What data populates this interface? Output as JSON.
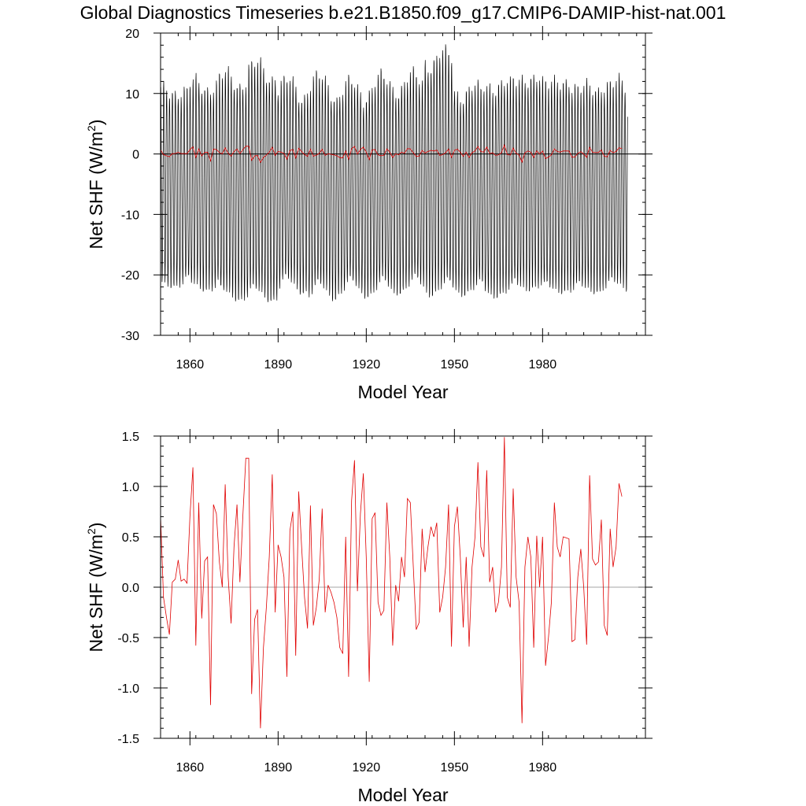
{
  "title": "Global Diagnostics Timeseries b.e21.B1850.f09_g17.CMIP6-DAMIP-hist-nat.001",
  "chart_data": [
    {
      "id": "monthly",
      "type": "line",
      "xlabel": "Model Year",
      "ylabel": "Net SHF (W/m",
      "ylabel_sup": "2",
      "ylabel_close": ")",
      "xlim": [
        1850,
        2015
      ],
      "ylim": [
        -30,
        20
      ],
      "xticks": [
        1860,
        1890,
        1920,
        1950,
        1980
      ],
      "xtick_labels": [
        "1860",
        "1890",
        "1920",
        "1950",
        "1980"
      ],
      "yticks": [
        -30,
        -20,
        -10,
        0,
        10,
        20
      ],
      "ytick_labels": [
        "-30",
        "-20",
        "-10",
        "0",
        "10",
        "20"
      ],
      "zero_line": 0,
      "series": [
        {
          "kind": "monthly",
          "color": "#000000",
          "x_start": 1850,
          "step": 0.0833,
          "annual_max_by_decade": [
            12.5,
            13.5,
            14.5,
            16.0,
            13.0,
            13.5,
            12.5,
            13.5,
            14.0,
            18.0,
            12.5,
            13.5,
            14.5,
            14.0,
            13.0,
            13.5,
            14.0
          ],
          "annual_min_by_decade": [
            -22.5,
            -23.0,
            -24.5,
            -24.5,
            -23.0,
            -24.0,
            -23.5,
            -23.5,
            -23.0,
            -23.5,
            -23.5,
            -24.0,
            -23.0,
            -23.5,
            -23.5,
            -23.0,
            -22.5
          ]
        },
        {
          "kind": "annual",
          "color": "#e00000",
          "ref": "annual_values"
        }
      ]
    },
    {
      "id": "annual",
      "type": "line",
      "xlabel": "Model Year",
      "ylabel": "Net SHF (W/m",
      "ylabel_sup": "2",
      "ylabel_close": ")",
      "xlim": [
        1850,
        2015
      ],
      "ylim": [
        -1.5,
        1.5
      ],
      "xticks": [
        1860,
        1890,
        1920,
        1950,
        1980
      ],
      "xtick_labels": [
        "1860",
        "1890",
        "1920",
        "1950",
        "1980"
      ],
      "yticks": [
        -1.5,
        -1.0,
        -0.5,
        0.0,
        0.5,
        1.0,
        1.5
      ],
      "ytick_labels": [
        "-1.5",
        "-1.0",
        "-0.5",
        "0.0",
        "0.5",
        "1.0",
        "1.5"
      ],
      "zero_line": 0,
      "series": [
        {
          "kind": "annual",
          "color": "#e00000",
          "ref": "annual_values"
        }
      ]
    }
  ],
  "annual_series": {
    "x_start": 1850,
    "step": 1,
    "values": [
      0.7,
      -0.1,
      -0.3,
      -0.47,
      0.05,
      0.08,
      0.27,
      0.06,
      0.08,
      0.04,
      0.7,
      1.19,
      -0.58,
      0.84,
      -0.31,
      0.26,
      0.3,
      -1.17,
      0.82,
      0.73,
      0.25,
      0.0,
      1.02,
      0.1,
      -0.36,
      0.4,
      0.82,
      0.05,
      0.7,
      1.28,
      1.28,
      -1.06,
      -0.32,
      -0.22,
      -1.4,
      -0.6,
      -0.2,
      0.3,
      1.12,
      -0.25,
      0.42,
      0.3,
      0.1,
      -0.89,
      0.56,
      0.75,
      -0.68,
      0.95,
      0.4,
      -0.1,
      -0.41,
      0.81,
      -0.38,
      -0.2,
      0.08,
      0.78,
      -0.25,
      0.02,
      -0.05,
      -0.15,
      -0.3,
      -0.6,
      -0.66,
      0.5,
      -0.89,
      0.86,
      1.26,
      -0.04,
      0.73,
      1.13,
      0.3,
      -0.94,
      0.68,
      0.74,
      -0.15,
      -0.28,
      -0.23,
      0.84,
      0.3,
      -0.58,
      0.02,
      -0.14,
      0.3,
      0.1,
      0.88,
      0.84,
      0.2,
      -0.42,
      -0.35,
      0.58,
      0.15,
      0.4,
      0.6,
      0.5,
      0.64,
      -0.25,
      -0.1,
      0.2,
      0.82,
      -0.59,
      0.6,
      0.8,
      0.3,
      -0.4,
      0.3,
      -0.59,
      0.2,
      0.5,
      1.24,
      0.4,
      0.3,
      1.16,
      0.05,
      0.2,
      -0.25,
      -0.15,
      0.2,
      1.49,
      -0.1,
      -0.2,
      0.98,
      0.1,
      -0.15,
      -1.35,
      0.2,
      0.5,
      0.3,
      -0.6,
      0.51,
      0.0,
      0.5,
      -0.78,
      -0.5,
      -0.15,
      0.84,
      0.4,
      0.3,
      0.5,
      0.49,
      0.48,
      -0.54,
      -0.52,
      0.1,
      0.38,
      0.0,
      -0.57,
      1.11,
      0.28,
      0.22,
      0.25,
      0.67,
      -0.38,
      -0.48,
      0.58,
      0.2,
      0.4,
      1.03,
      0.9
    ]
  }
}
